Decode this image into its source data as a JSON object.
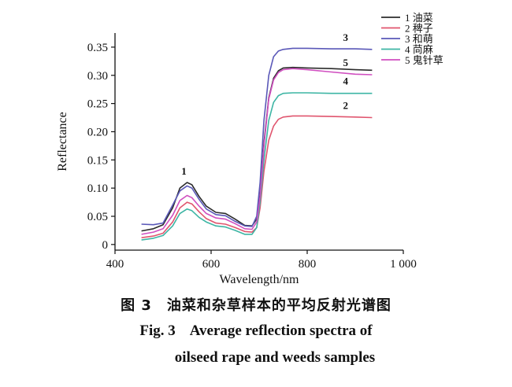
{
  "chart_data": {
    "type": "line",
    "xlabel": "Wavelength/nm",
    "ylabel": "Reflectance",
    "xlim": [
      400,
      1000
    ],
    "ylim": [
      -0.01,
      0.375
    ],
    "xticks": [
      400,
      600,
      800,
      1000
    ],
    "xtick_labels": [
      "400",
      "600",
      "800",
      "1 000"
    ],
    "yticks": [
      0,
      0.05,
      0.1,
      0.15,
      0.2,
      0.25,
      0.3,
      0.35
    ],
    "ytick_labels": [
      "0",
      "0.05",
      "0.10",
      "0.15",
      "0.20",
      "0.25",
      "0.30",
      "0.35"
    ],
    "grid": false,
    "legend_position": "top-right",
    "x": [
      455,
      480,
      500,
      520,
      535,
      550,
      560,
      575,
      590,
      610,
      630,
      650,
      670,
      685,
      695,
      702,
      710,
      720,
      730,
      740,
      750,
      770,
      800,
      850,
      900,
      935
    ],
    "series": [
      {
        "name": "1 油菜",
        "color": "#2b2b2b",
        "label": "1",
        "values": [
          0.024,
          0.028,
          0.035,
          0.065,
          0.1,
          0.11,
          0.106,
          0.085,
          0.068,
          0.057,
          0.055,
          0.045,
          0.034,
          0.033,
          0.045,
          0.09,
          0.18,
          0.26,
          0.295,
          0.308,
          0.313,
          0.314,
          0.313,
          0.312,
          0.31,
          0.309
        ]
      },
      {
        "name": "2 稗子",
        "color": "#e0556e",
        "label": "2",
        "values": [
          0.012,
          0.015,
          0.02,
          0.04,
          0.065,
          0.075,
          0.072,
          0.058,
          0.046,
          0.038,
          0.036,
          0.03,
          0.023,
          0.022,
          0.03,
          0.065,
          0.13,
          0.185,
          0.21,
          0.222,
          0.226,
          0.228,
          0.228,
          0.227,
          0.226,
          0.225
        ]
      },
      {
        "name": "3 和萌",
        "color": "#5a58b8",
        "label": "3",
        "values": [
          0.036,
          0.035,
          0.038,
          0.07,
          0.095,
          0.104,
          0.1,
          0.08,
          0.063,
          0.053,
          0.051,
          0.041,
          0.033,
          0.032,
          0.05,
          0.11,
          0.22,
          0.3,
          0.333,
          0.343,
          0.346,
          0.348,
          0.348,
          0.347,
          0.347,
          0.346
        ]
      },
      {
        "name": "4 苘麻",
        "color": "#3db5a4",
        "label": "4",
        "values": [
          0.008,
          0.011,
          0.016,
          0.033,
          0.055,
          0.063,
          0.06,
          0.048,
          0.04,
          0.033,
          0.031,
          0.025,
          0.018,
          0.018,
          0.03,
          0.075,
          0.15,
          0.22,
          0.252,
          0.264,
          0.268,
          0.269,
          0.269,
          0.268,
          0.268,
          0.268
        ]
      },
      {
        "name": "5 鬼针草",
        "color": "#d04fc0",
        "label": "5",
        "values": [
          0.018,
          0.022,
          0.028,
          0.052,
          0.078,
          0.087,
          0.083,
          0.068,
          0.055,
          0.047,
          0.045,
          0.037,
          0.028,
          0.027,
          0.04,
          0.085,
          0.175,
          0.258,
          0.292,
          0.305,
          0.31,
          0.312,
          0.31,
          0.306,
          0.302,
          0.301
        ]
      }
    ]
  },
  "caption": {
    "cn": "图 3　油菜和杂草样本的平均反射光谱图",
    "en_line1": "Fig. 3    Average reflection spectra of",
    "en_line2": "oilseed rape and weeds samples"
  }
}
